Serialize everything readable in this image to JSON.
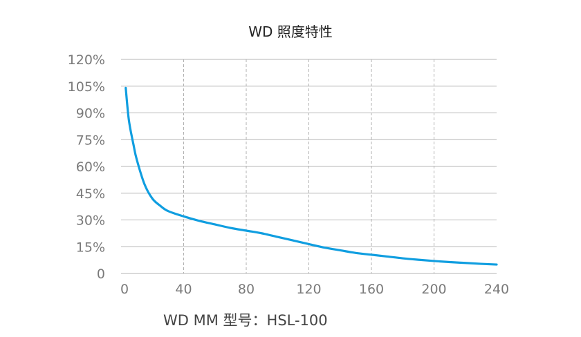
{
  "chart_data": {
    "type": "line",
    "title": "WD 照度特性",
    "caption": "WD MM 型号：HSL-100",
    "xlabel": "",
    "ylabel": "",
    "xlim": [
      0,
      240
    ],
    "ylim": [
      0,
      120
    ],
    "x_ticks": [
      "0",
      "40",
      "80",
      "120",
      "160",
      "200",
      "240"
    ],
    "y_ticks": [
      "0",
      "15%",
      "30%",
      "45%",
      "60%",
      "75%",
      "90%",
      "105%",
      "120%"
    ],
    "grid": {
      "horizontal": "solid",
      "vertical": "dashed"
    },
    "series": [
      {
        "color": "#109ee0",
        "x": [
          3,
          5,
          8,
          10,
          15,
          20,
          25,
          30,
          40,
          50,
          60,
          70,
          80,
          90,
          100,
          110,
          120,
          130,
          140,
          150,
          160,
          170,
          180,
          190,
          200,
          210,
          220,
          230,
          240
        ],
        "y": [
          104,
          86,
          72,
          64,
          50,
          42,
          38,
          35,
          32,
          29.5,
          27.5,
          25.5,
          24,
          22.5,
          20.5,
          18.5,
          16.5,
          14.5,
          13,
          11.5,
          10.5,
          9.5,
          8.5,
          7.7,
          7,
          6.4,
          5.9,
          5.4,
          5
        ]
      }
    ]
  }
}
